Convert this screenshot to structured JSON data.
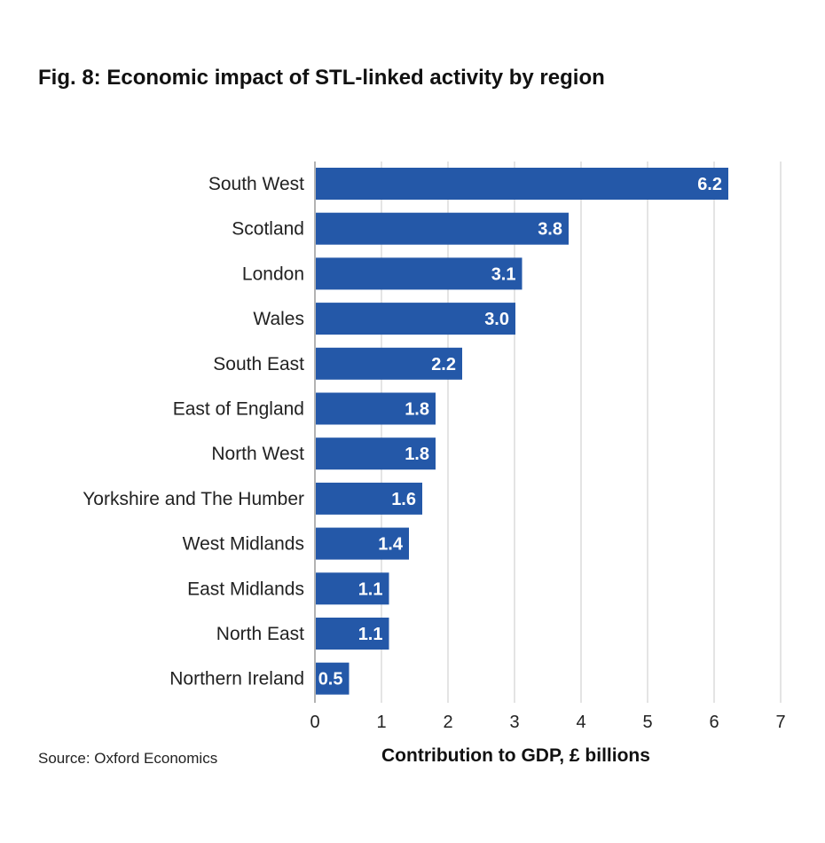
{
  "title": "Fig. 8: Economic impact of STL-linked activity by region",
  "source": "Source: Oxford Economics",
  "colors": {
    "bar": "#2458a8",
    "grid": "#c8c8c8",
    "axis": "#9a9a9a"
  },
  "chart_data": {
    "type": "bar",
    "orientation": "horizontal",
    "title": "Fig. 8: Economic impact of STL-linked activity by region",
    "xlabel": "Contribution to GDP, £ billions",
    "ylabel": "",
    "categories": [
      "South West",
      "Scotland",
      "London",
      "Wales",
      "South East",
      "East of England",
      "North West",
      "Yorkshire and The Humber",
      "West Midlands",
      "East Midlands",
      "North East",
      "Northern Ireland"
    ],
    "values": [
      6.2,
      3.8,
      3.1,
      3.0,
      2.2,
      1.8,
      1.8,
      1.6,
      1.4,
      1.1,
      1.1,
      0.5
    ],
    "value_labels": [
      "6.2",
      "3.8",
      "3.1",
      "3.0",
      "2.2",
      "1.8",
      "1.8",
      "1.6",
      "1.4",
      "1.1",
      "1.1",
      "0.5"
    ],
    "xlim": [
      0,
      7
    ],
    "xticks": [
      "0",
      "1",
      "2",
      "3",
      "4",
      "5",
      "6",
      "7"
    ],
    "grid": true,
    "legend": "none"
  }
}
